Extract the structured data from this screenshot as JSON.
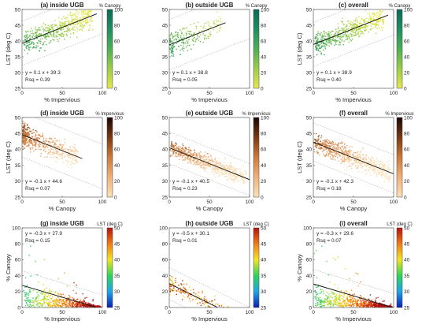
{
  "colorscales": {
    "canopy": [
      "#e7e84c",
      "#9ccd4a",
      "#4eaf55",
      "#1f8f62",
      "#0a6a57"
    ],
    "impervious": [
      "#fbe0b7",
      "#f0b27a",
      "#cc7a3c",
      "#7a3a12",
      "#1a0603"
    ],
    "lst": [
      "#0a1fb0",
      "#1fa6e6",
      "#2fd35a",
      "#f2e524",
      "#f07b18",
      "#b3110e"
    ]
  },
  "chart_data": [
    {
      "type": "scatter",
      "title": "(a) inside UGB",
      "xlabel": "% Impervious",
      "ylabel": "LST (deg C)",
      "xlim": [
        0,
        100
      ],
      "ylim": [
        25,
        50
      ],
      "xticks": [
        0,
        50,
        100
      ],
      "yticks": [
        25,
        30,
        35,
        40,
        45,
        50
      ],
      "colorbar": {
        "label": "% Canopy",
        "scale": "canopy",
        "range": [
          0,
          100
        ],
        "ticks": [
          0,
          20,
          40,
          60,
          80,
          100
        ]
      },
      "fit": {
        "slope": 0.1,
        "intercept": 39.3,
        "equation": "y = 0.1 x + 39.3",
        "rsq": "Rsq = 0.39"
      },
      "cloud": {
        "x_range": [
          2,
          88
        ],
        "spread": 3.5,
        "count": 520,
        "pattern": "x"
      }
    },
    {
      "type": "scatter",
      "title": "(b) outside UGB",
      "xlabel": "% Impervious",
      "ylabel": "",
      "xlim": [
        0,
        100
      ],
      "ylim": [
        25,
        50
      ],
      "xticks": [
        0,
        50,
        100
      ],
      "yticks": [
        25,
        30,
        35,
        40,
        45,
        50
      ],
      "colorbar": {
        "label": "% Canopy",
        "scale": "canopy",
        "range": [
          0,
          100
        ],
        "ticks": [
          0,
          20,
          40,
          60,
          80,
          100
        ]
      },
      "fit": {
        "slope": 0.1,
        "intercept": 38.8,
        "equation": "y = 0.1 x + 38.8",
        "rsq": "Rsq = 0.05"
      },
      "cloud": {
        "x_range": [
          1,
          65
        ],
        "spread": 4,
        "count": 220,
        "pattern": "low_x"
      }
    },
    {
      "type": "scatter",
      "title": "(c) overall",
      "xlabel": "% Impervious",
      "ylabel": "LST (deg C)",
      "xlim": [
        0,
        100
      ],
      "ylim": [
        25,
        50
      ],
      "xticks": [
        0,
        50,
        100
      ],
      "yticks": [
        25,
        30,
        35,
        40,
        45,
        50
      ],
      "colorbar": {
        "label": "% Canopy",
        "scale": "canopy",
        "range": [
          0,
          100
        ],
        "ticks": [
          0,
          20,
          40,
          60,
          80,
          100
        ]
      },
      "fit": {
        "slope": 0.1,
        "intercept": 38.9,
        "equation": "y = 0.1 x + 38.9",
        "rsq": "Rsq = 0.40"
      },
      "cloud": {
        "x_range": [
          2,
          88
        ],
        "spread": 3.5,
        "count": 560,
        "pattern": "x"
      }
    },
    {
      "type": "scatter",
      "title": "(d) inside UGB",
      "xlabel": "% Canopy",
      "ylabel": "LST (deg C)",
      "xlim": [
        0,
        100
      ],
      "ylim": [
        25,
        50
      ],
      "xticks": [
        0,
        50,
        100
      ],
      "yticks": [
        25,
        30,
        35,
        40,
        45,
        50
      ],
      "colorbar": {
        "label": "% Impervious",
        "scale": "impervious",
        "range": [
          0,
          100
        ],
        "ticks": [
          0,
          20,
          40,
          60,
          80,
          100
        ]
      },
      "fit": {
        "slope": -0.1,
        "intercept": 44.6,
        "equation": "y = -0.1 x + 44.6",
        "rsq": "Rsq = 0.07"
      },
      "cloud": {
        "x_range": [
          1,
          70
        ],
        "spread": 3.5,
        "count": 520,
        "pattern": "low_x"
      }
    },
    {
      "type": "scatter",
      "title": "(e) outside UGB",
      "xlabel": "% Canopy",
      "ylabel": "",
      "xlim": [
        0,
        100
      ],
      "ylim": [
        25,
        50
      ],
      "xticks": [
        0,
        50,
        100
      ],
      "yticks": [
        25,
        30,
        35,
        40,
        45,
        50
      ],
      "colorbar": {
        "label": "% Impervious",
        "scale": "impervious",
        "range": [
          0,
          100
        ],
        "ticks": [
          0,
          20,
          40,
          60,
          80,
          100
        ]
      },
      "fit": {
        "slope": -0.1,
        "intercept": 40.5,
        "equation": "y = -0.1 x + 40.5",
        "rsq": "Rsq = 0.23"
      },
      "cloud": {
        "x_range": [
          1,
          96
        ],
        "spread": 2.5,
        "count": 620,
        "pattern": "x"
      }
    },
    {
      "type": "scatter",
      "title": "(f) overall",
      "xlabel": "% Canopy",
      "ylabel": "LST (deg C)",
      "xlim": [
        0,
        100
      ],
      "ylim": [
        25,
        50
      ],
      "xticks": [
        0,
        50,
        100
      ],
      "yticks": [
        25,
        30,
        35,
        40,
        45,
        50
      ],
      "colorbar": {
        "label": "% Impervious",
        "scale": "impervious",
        "range": [
          0,
          100
        ],
        "ticks": [
          0,
          20,
          40,
          60,
          80,
          100
        ]
      },
      "fit": {
        "slope": -0.1,
        "intercept": 42.3,
        "equation": "y = -0.1 x + 42.3",
        "rsq": "Rsq = 0.18"
      },
      "cloud": {
        "x_range": [
          1,
          96
        ],
        "spread": 3,
        "count": 680,
        "pattern": "x_inv"
      }
    },
    {
      "type": "scatter",
      "title": "(g) inside UGB",
      "xlabel": "% Impervious",
      "ylabel": "% Canopy",
      "xlim": [
        0,
        100
      ],
      "ylim": [
        0,
        100
      ],
      "xticks": [
        0,
        50,
        100
      ],
      "yticks": [
        0,
        20,
        40,
        60,
        80,
        100
      ],
      "colorbar": {
        "label": "LST (deg C)",
        "scale": "lst",
        "range": [
          25,
          50
        ],
        "ticks": [
          25,
          30,
          35,
          40,
          45,
          50
        ]
      },
      "fit": {
        "slope": -0.3,
        "intercept": 27.9,
        "equation": "y = -0.3 x + 27.9",
        "rsq": "Rsq = 0.15"
      },
      "cloud": {
        "x_range": [
          1,
          98
        ],
        "spread": 9,
        "count": 620,
        "pattern": "triangle"
      }
    },
    {
      "type": "scatter",
      "title": "(h) outside UGB",
      "xlabel": "% Impervious",
      "ylabel": "",
      "xlim": [
        0,
        100
      ],
      "ylim": [
        0,
        100
      ],
      "xticks": [
        0,
        50,
        100
      ],
      "yticks": [
        0,
        20,
        40,
        60,
        80,
        100
      ],
      "colorbar": {
        "label": "LST (deg C)",
        "scale": "lst",
        "range": [
          25,
          50
        ],
        "ticks": [
          25,
          30,
          35,
          40,
          45,
          50
        ]
      },
      "fit": {
        "slope": -0.5,
        "intercept": 30.1,
        "equation": "y = -0.5 x + 30.1",
        "rsq": "Rsq = 0.01"
      },
      "cloud": {
        "x_range": [
          1,
          75
        ],
        "spread": 10,
        "count": 180,
        "pattern": "low_x"
      }
    },
    {
      "type": "scatter",
      "title": "(i) overall",
      "xlabel": "% Impervious",
      "ylabel": "% Canopy",
      "xlim": [
        0,
        100
      ],
      "ylim": [
        0,
        100
      ],
      "xticks": [
        0,
        50,
        100
      ],
      "yticks": [
        0,
        20,
        40,
        60,
        80,
        100
      ],
      "colorbar": {
        "label": "LST (deg C)",
        "scale": "lst",
        "range": [
          25,
          50
        ],
        "ticks": [
          25,
          30,
          35,
          40,
          45,
          50
        ]
      },
      "fit": {
        "slope": -0.3,
        "intercept": 29.6,
        "equation": "y = -0.3 x + 29.6",
        "rsq": "Rsq = 0.07"
      },
      "cloud": {
        "x_range": [
          1,
          98
        ],
        "spread": 9,
        "count": 680,
        "pattern": "triangle"
      }
    }
  ]
}
